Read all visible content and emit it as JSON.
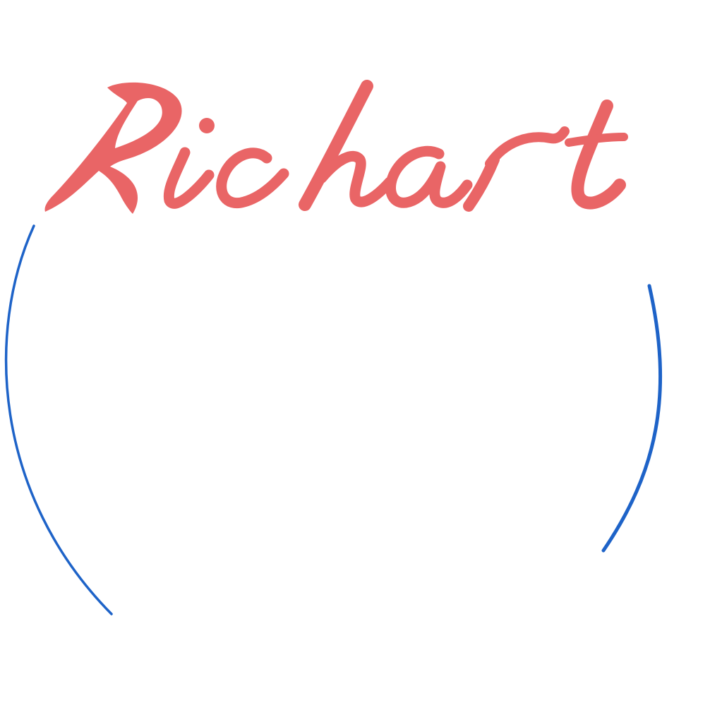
{
  "logo": {
    "wordmark": "Richart",
    "colors": {
      "wordmark": "#e96566",
      "ring": "#1e63c8",
      "background": "#ffffff"
    }
  }
}
